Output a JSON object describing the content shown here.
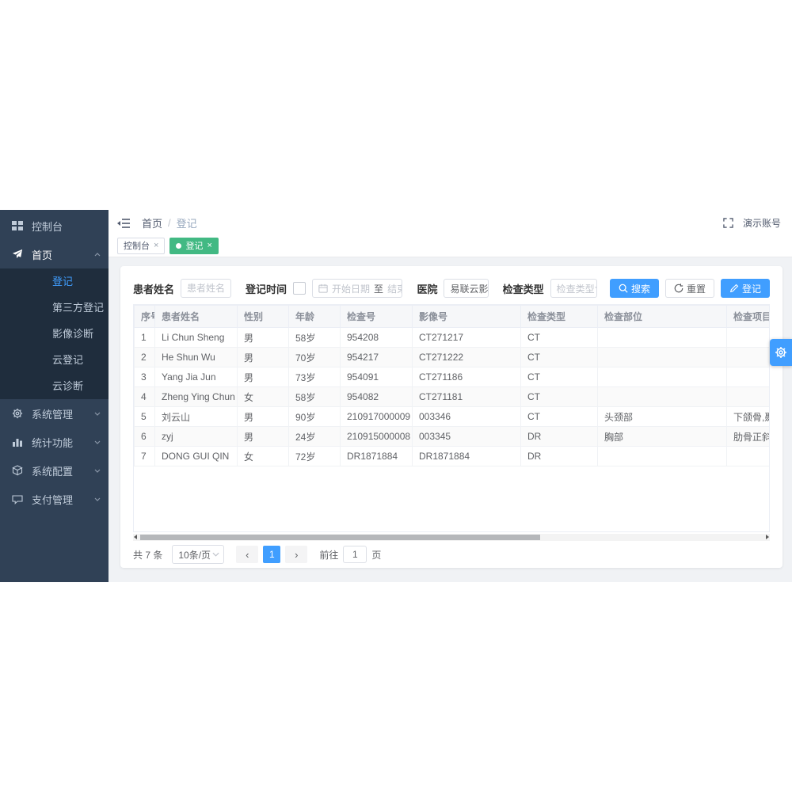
{
  "colors": {
    "accent": "#409eff",
    "active_tab_green": "#42b983",
    "sidebar_bg": "#304156",
    "submenu_bg": "#1f2d3d"
  },
  "sidebar": {
    "items": [
      {
        "label": "控制台"
      },
      {
        "label": "首页"
      },
      {
        "label": "系统管理"
      },
      {
        "label": "统计功能"
      },
      {
        "label": "系统配置"
      },
      {
        "label": "支付管理"
      }
    ],
    "submenu": [
      "登记",
      "第三方登记",
      "影像诊断",
      "云登记",
      "云诊断"
    ],
    "active_submenu": "登记"
  },
  "topbar": {
    "breadcrumb_home": "首页",
    "breadcrumb_sep": "/",
    "breadcrumb_current": "登记",
    "account": "演示账号"
  },
  "tabs": {
    "close_glyph": "×",
    "items": [
      {
        "label": "控制台",
        "active": false
      },
      {
        "label": "登记",
        "active": true
      }
    ]
  },
  "filters": {
    "patient_name_label": "患者姓名",
    "patient_name_placeholder": "患者姓名",
    "time_label": "登记时间",
    "start_date_placeholder": "开始日期",
    "to_label": "至",
    "end_date_placeholder": "结束日期",
    "hospital_label": "医院",
    "hospital_value": "易联云影",
    "exam_type_label": "检查类型",
    "exam_type_placeholder": "检查类型",
    "search_button": "搜索",
    "reset_button": "重置",
    "register_button": "登记"
  },
  "table": {
    "columns": [
      "序号",
      "患者姓名",
      "性别",
      "年龄",
      "检查号",
      "影像号",
      "检查类型",
      "检查部位",
      "检查项目"
    ],
    "rows": [
      [
        "1",
        "Li Chun Sheng",
        "男",
        "58岁",
        "954208",
        "CT271217",
        "CT",
        "",
        ""
      ],
      [
        "2",
        "He Shun Wu",
        "男",
        "70岁",
        "954217",
        "CT271222",
        "CT",
        "",
        ""
      ],
      [
        "3",
        "Yang Jia Jun",
        "男",
        "73岁",
        "954091",
        "CT271186",
        "CT",
        "",
        ""
      ],
      [
        "4",
        "Zheng Ying Chun",
        "女",
        "58岁",
        "954082",
        "CT271181",
        "CT",
        "",
        ""
      ],
      [
        "5",
        "刘云山",
        "男",
        "90岁",
        "210917000009",
        "003346",
        "CT",
        "头颈部",
        "下颌骨,颞骨冠状位"
      ],
      [
        "6",
        "zyj",
        "男",
        "24岁",
        "210915000008",
        "003345",
        "DR",
        "胸部",
        "肋骨正斜位"
      ],
      [
        "7",
        "DONG GUI QIN",
        "女",
        "72岁",
        "DR1871884",
        "DR1871884",
        "DR",
        "",
        ""
      ]
    ]
  },
  "pagination": {
    "total_label": "共 7 条",
    "page_size": "10条/页",
    "prev": "‹",
    "current": "1",
    "next": "›",
    "goto_label": "前往",
    "goto_value": "1",
    "unit_label": "页"
  }
}
